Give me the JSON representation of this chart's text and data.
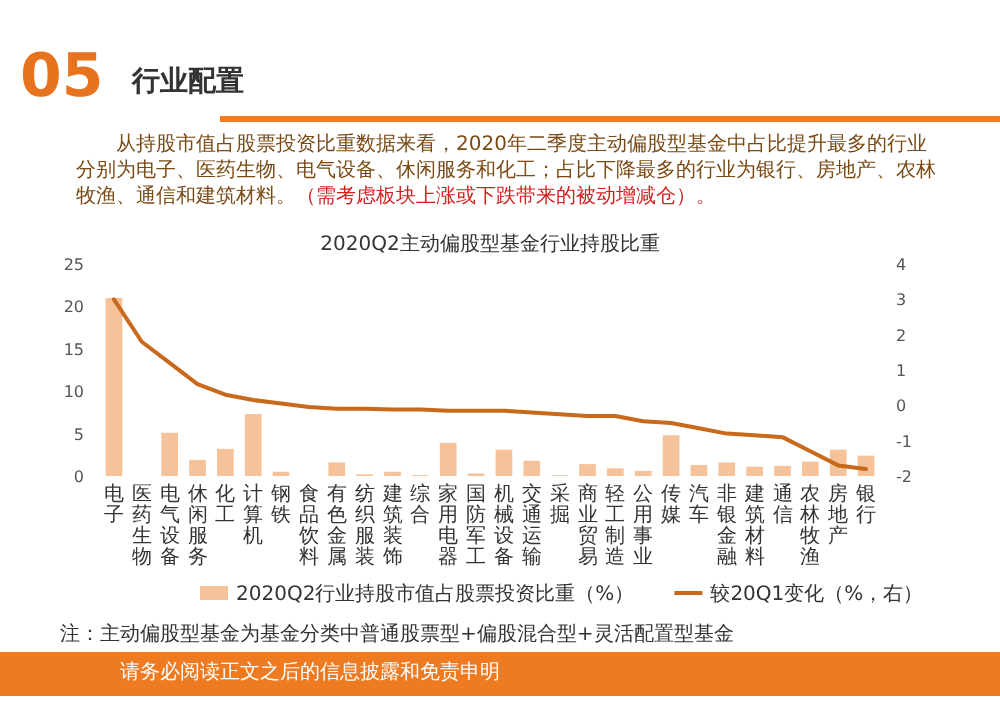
{
  "chart_data": {
    "type": "bar",
    "title": "2020Q2主动偏股型基金行业持股比重",
    "annotations": [
      "05",
      "行业配置",
      "从持股市值占股票投资比重数据来看，2020年二季度主动偏股型基金中占比提升最多的行业分别为电子、医药生物、电气设备、休闲服务和化工；占比下降最多的行业为银行、房地产、农林牧渔、通信和建筑材料。",
      "（需考虑板块上涨或下跌带来的被动增减仓）。",
      "注：主动偏股型基金为基金分类中普通股票型+偏股混合型+灵活配置型基金",
      "请务必阅读正文之后的信息披露和免责申明"
    ],
    "categories": [
      "电子",
      "医药生物",
      "电气设备",
      "休闲服务",
      "化工",
      "计算机",
      "钢铁",
      "食品饮料",
      "有色金属",
      "纺织服装",
      "建筑装饰",
      "综合",
      "家用电器",
      "国防军工",
      "机械设备",
      "交通运输",
      "采掘",
      "商业贸易",
      "轻工制造",
      "公用事业",
      "传媒",
      "汽车",
      "非银金融",
      "建筑材料",
      "通信",
      "农林牧渔",
      "房地产",
      "银行"
    ],
    "series": [
      {
        "name": "2020Q2行业持股市值占股票投资比重（%）",
        "color": "#f6c29a",
        "values": [
          21,
          null,
          5.1,
          1.9,
          3.2,
          7.3,
          0.5,
          null,
          1.6,
          0.2,
          0.5,
          0.1,
          3.9,
          0.3,
          3.1,
          1.8,
          0.1,
          1.4,
          0.9,
          0.6,
          4.8,
          1.3,
          1.6,
          1.1,
          1.2,
          1.7,
          3.1,
          2.4
        ]
      },
      {
        "name": "较20Q1变化（%，右）",
        "type": "line",
        "axis": "y2",
        "color": "#c8691c",
        "values": [
          3.0,
          1.8,
          1.2,
          0.6,
          0.3,
          0.15,
          0.05,
          -0.05,
          -0.1,
          -0.1,
          -0.12,
          -0.12,
          -0.15,
          -0.15,
          -0.15,
          -0.2,
          -0.25,
          -0.3,
          -0.3,
          -0.45,
          -0.5,
          -0.65,
          -0.8,
          -0.85,
          -0.9,
          -1.3,
          -1.7,
          -1.8
        ]
      }
    ],
    "ylim": [
      0,
      25
    ],
    "yticks": [
      0,
      5,
      10,
      15,
      20,
      25
    ],
    "y2lim": [
      -2,
      4
    ],
    "y2ticks": [
      -2,
      -1,
      0,
      1,
      2,
      3,
      4
    ],
    "legend": "bottom",
    "grid": false
  }
}
